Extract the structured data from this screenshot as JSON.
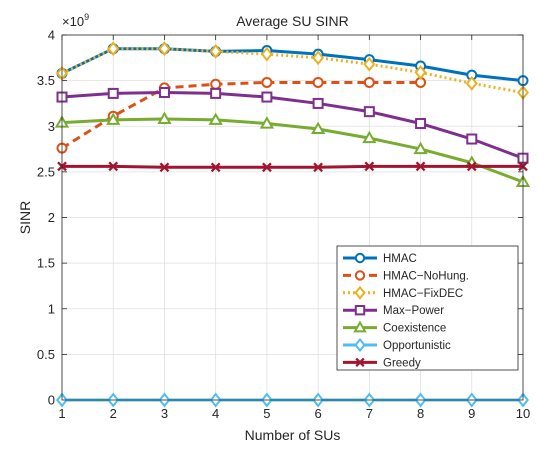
{
  "chart_data": {
    "type": "line",
    "title": "Average SU SINR",
    "xlabel": "Number of SUs",
    "ylabel": "SINR",
    "exponent_label": "×10",
    "exponent_power": "9",
    "x": [
      1,
      2,
      3,
      4,
      5,
      6,
      7,
      8,
      9,
      10
    ],
    "xlim": [
      1,
      10
    ],
    "ylim": [
      0,
      4
    ],
    "xticks": [
      "1",
      "2",
      "3",
      "4",
      "5",
      "6",
      "7",
      "8",
      "9",
      "10"
    ],
    "yticks": [
      "0",
      "0.5",
      "1",
      "1.5",
      "2",
      "2.5",
      "3",
      "3.5",
      "4"
    ],
    "grid": true,
    "legend_position": "center-right",
    "series": [
      {
        "name": "HMAC",
        "color": "#0072BD",
        "dash": "solid",
        "marker": "circle",
        "values": [
          3.58,
          3.85,
          3.85,
          3.82,
          3.83,
          3.79,
          3.73,
          3.66,
          3.56,
          3.5
        ]
      },
      {
        "name": "HMAC−NoHung.",
        "color": "#D95319",
        "dash": "dashed",
        "marker": "circle",
        "values": [
          2.76,
          3.11,
          3.42,
          3.46,
          3.48,
          3.48,
          3.48,
          3.48,
          null,
          null
        ]
      },
      {
        "name": "HMAC−FixDEC",
        "color": "#EDB120",
        "dash": "dotted",
        "marker": "diamond",
        "values": [
          3.58,
          3.85,
          3.85,
          3.82,
          3.79,
          3.75,
          3.68,
          3.59,
          3.47,
          3.37
        ]
      },
      {
        "name": "Max−Power",
        "color": "#7E2F8E",
        "dash": "solid",
        "marker": "square",
        "values": [
          3.32,
          3.36,
          3.37,
          3.36,
          3.32,
          3.25,
          3.16,
          3.03,
          2.86,
          2.65
        ]
      },
      {
        "name": "Coexistence",
        "color": "#77AC30",
        "dash": "solid",
        "marker": "triangle",
        "values": [
          3.04,
          3.07,
          3.08,
          3.07,
          3.03,
          2.97,
          2.87,
          2.75,
          2.6,
          2.39
        ]
      },
      {
        "name": "Opportunistic",
        "color": "#4DBEEE",
        "dash": "solid",
        "marker": "diamond",
        "values": [
          0,
          0,
          0,
          0,
          0,
          0,
          0,
          0,
          0,
          0
        ]
      },
      {
        "name": "Greedy",
        "color": "#A2142F",
        "dash": "solid",
        "marker": "x",
        "values": [
          2.56,
          2.56,
          2.55,
          2.55,
          2.55,
          2.55,
          2.56,
          2.56,
          2.56,
          2.56
        ]
      }
    ]
  }
}
